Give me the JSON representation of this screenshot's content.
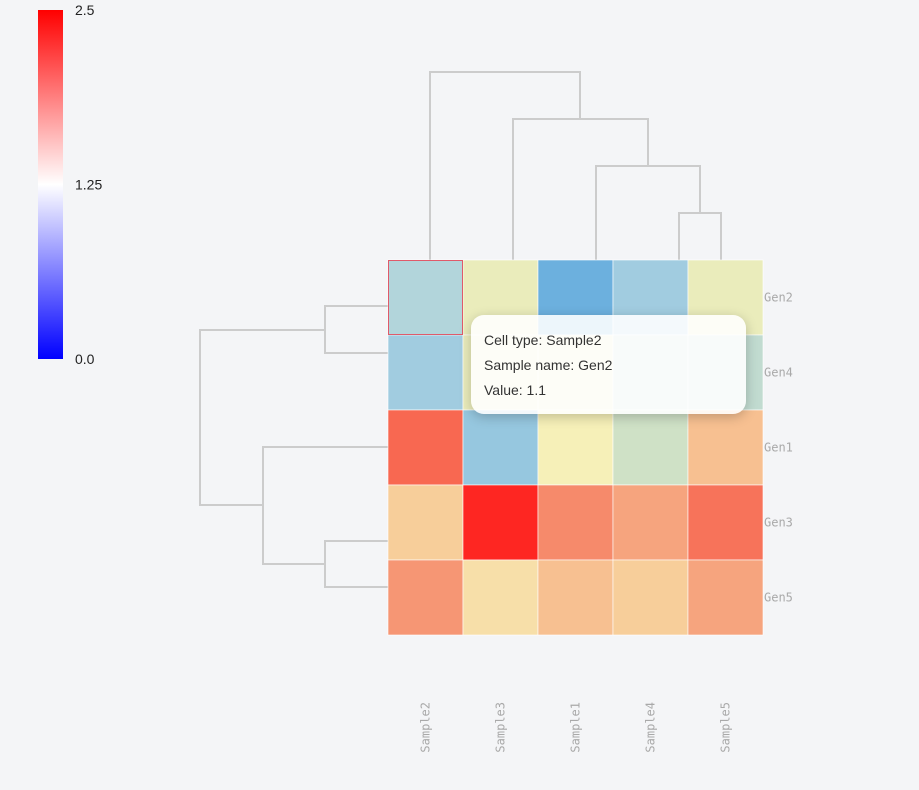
{
  "chart_data": {
    "type": "heatmap",
    "columns": [
      "Sample2",
      "Sample3",
      "Sample1",
      "Sample4",
      "Sample5"
    ],
    "rows": [
      "Gen2",
      "Gen4",
      "Gen1",
      "Gen3",
      "Gen5"
    ],
    "values": [
      [
        1.1,
        1.5,
        0.75,
        1.0,
        1.5
      ],
      [
        1.0,
        1.5,
        1.5,
        1.2,
        1.2
      ],
      [
        2.2,
        0.95,
        1.6,
        1.3,
        1.85
      ],
      [
        1.8,
        2.45,
        2.05,
        1.95,
        2.15
      ],
      [
        2.0,
        1.7,
        1.85,
        1.8,
        1.95
      ]
    ],
    "colorscale": {
      "min": 0.0,
      "max": 2.5,
      "low_color": "#0000ff",
      "mid_color": "#ffffff",
      "high_color": "#ff0000",
      "ticks": [
        "0.0",
        "1.25",
        "2.5"
      ]
    },
    "dendrogram_color": "#cccccc",
    "highlight_color": "#e05a6a",
    "highlighted_cell": {
      "row": "Gen2",
      "column": "Sample2"
    }
  },
  "tooltip": {
    "line1": "Cell type: Sample2",
    "line2": "Sample name: Gen2",
    "line3": "Value: 1.1"
  }
}
